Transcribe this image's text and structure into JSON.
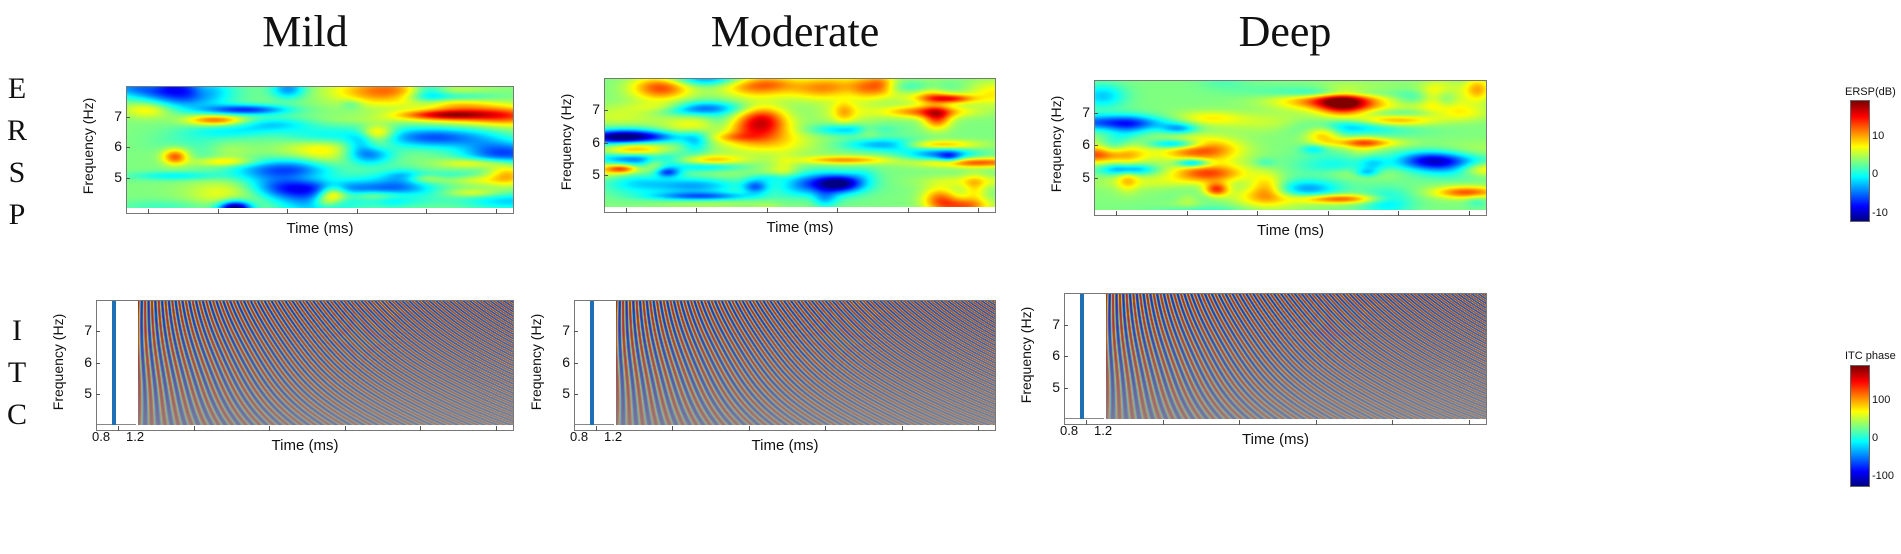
{
  "columns": [
    "Mild",
    "Moderate",
    "Deep"
  ],
  "rows": {
    "ersp": [
      "E",
      "R",
      "S",
      "P"
    ],
    "itc": [
      "I",
      "T",
      "C"
    ]
  },
  "axis": {
    "ylabel": "Frequency (Hz)",
    "xlabel": "Time (ms)",
    "ytick_labels": [
      "7",
      "6",
      "5"
    ],
    "itc_x_ticks": [
      "0.8",
      "1.2"
    ]
  },
  "colorbars": {
    "ersp": {
      "title": "ERSP(dB)",
      "ticks": [
        "10",
        "0",
        "-10"
      ]
    },
    "itc": {
      "title": "ITC phase",
      "ticks": [
        "100",
        "0",
        "-100"
      ]
    }
  },
  "chart_data": [
    {
      "type": "heatmap",
      "title": "Mild",
      "ylabel": "Frequency (Hz)",
      "xlabel": "Time (ms)",
      "ylim": [
        4,
        8
      ],
      "yticks": [
        5,
        6,
        7
      ],
      "measure": "ERSP (dB)",
      "clim": [
        -15,
        15
      ],
      "seed": 11
    },
    {
      "type": "heatmap",
      "title": "Moderate",
      "ylabel": "Frequency (Hz)",
      "xlabel": "Time (ms)",
      "ylim": [
        4,
        8
      ],
      "yticks": [
        5,
        6,
        7
      ],
      "measure": "ERSP (dB)",
      "clim": [
        -15,
        15
      ],
      "seed": 23
    },
    {
      "type": "heatmap",
      "title": "Deep",
      "ylabel": "Frequency (Hz)",
      "xlabel": "Time (ms)",
      "ylim": [
        4,
        8
      ],
      "yticks": [
        5,
        6,
        7
      ],
      "measure": "ERSP (dB)",
      "clim": [
        -15,
        15
      ],
      "seed": 37
    },
    {
      "type": "heatmap",
      "title": "Mild",
      "ylabel": "Frequency (Hz)",
      "xlabel": "Time (ms)",
      "ylim": [
        4,
        8
      ],
      "yticks": [
        5,
        6,
        7
      ],
      "xticks": [
        0.8,
        1.2
      ],
      "measure": "ITC phase",
      "clim": [
        -180,
        180
      ],
      "seed": 51
    },
    {
      "type": "heatmap",
      "title": "Moderate",
      "ylabel": "Frequency (Hz)",
      "xlabel": "Time (ms)",
      "ylim": [
        4,
        8
      ],
      "yticks": [
        5,
        6,
        7
      ],
      "xticks": [
        0.8,
        1.2
      ],
      "measure": "ITC phase",
      "clim": [
        -180,
        180
      ],
      "seed": 67
    },
    {
      "type": "heatmap",
      "title": "Deep",
      "ylabel": "Frequency (Hz)",
      "xlabel": "Time (ms)",
      "ylim": [
        4,
        8
      ],
      "yticks": [
        5,
        6,
        7
      ],
      "xticks": [
        0.8,
        1.2
      ],
      "measure": "ITC phase",
      "clim": [
        -180,
        180
      ],
      "seed": 83
    }
  ]
}
